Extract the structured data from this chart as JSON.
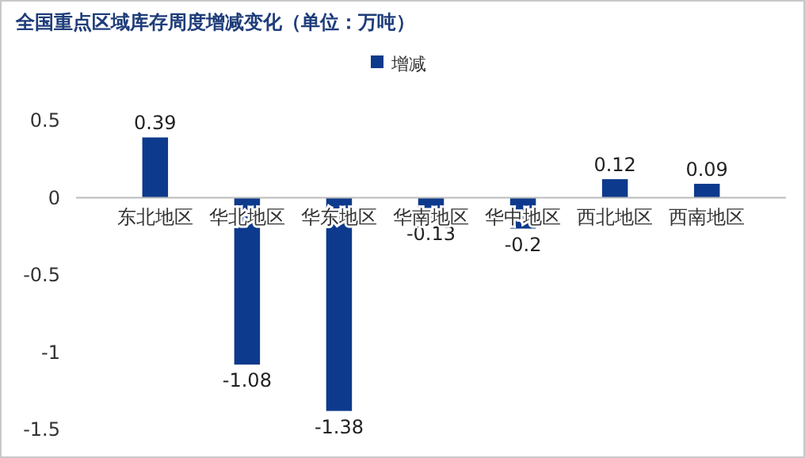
{
  "chart_data": {
    "type": "bar",
    "title": "全国重点区域库存周度增减变化（单位：万吨）",
    "categories": [
      "东北地区",
      "华北地区",
      "华东地区",
      "华南地区",
      "华中地区",
      "西北地区",
      "西南地区"
    ],
    "series": [
      {
        "name": "增减",
        "color": "#0d3a8c",
        "values": [
          0.39,
          -1.08,
          -1.38,
          -0.13,
          -0.2,
          0.12,
          0.09
        ]
      }
    ],
    "ylim": [
      -1.5,
      0.5
    ],
    "yticks": [
      0.5,
      0,
      -0.5,
      -1,
      -1.5
    ],
    "grid": false,
    "legend": "top",
    "data_labels": true
  }
}
